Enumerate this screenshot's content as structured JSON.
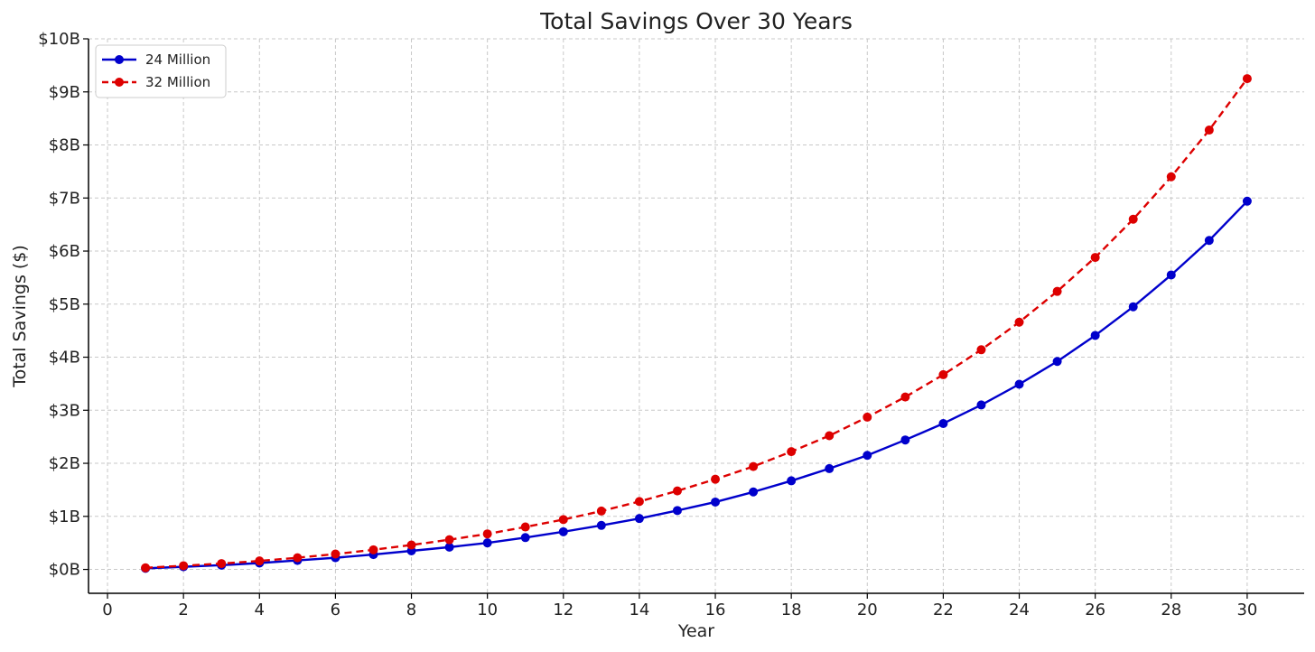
{
  "chart_data": {
    "type": "line",
    "title": "Total Savings Over 30 Years",
    "xlabel": "Year",
    "ylabel": "Total Savings ($)",
    "xlim": [
      -0.5,
      31.5
    ],
    "ylim": [
      -0.45,
      10
    ],
    "x_ticks": [
      0,
      2,
      4,
      6,
      8,
      10,
      12,
      14,
      16,
      18,
      20,
      22,
      24,
      26,
      28,
      30
    ],
    "y_ticks": [
      0,
      1,
      2,
      3,
      4,
      5,
      6,
      7,
      8,
      9,
      10
    ],
    "y_tick_labels": [
      "$0B",
      "$1B",
      "$2B",
      "$3B",
      "$4B",
      "$5B",
      "$6B",
      "$7B",
      "$8B",
      "$9B",
      "$10B"
    ],
    "y_unit": "billions of dollars",
    "grid": true,
    "legend_position": "top-left",
    "x": [
      1,
      2,
      3,
      4,
      5,
      6,
      7,
      8,
      9,
      10,
      11,
      12,
      13,
      14,
      15,
      16,
      17,
      18,
      19,
      20,
      21,
      22,
      23,
      24,
      25,
      26,
      27,
      28,
      29,
      30
    ],
    "series": [
      {
        "name": "24 Million",
        "color": "#0000cc",
        "line_style": "solid",
        "marker": "circle",
        "values": [
          0.02,
          0.05,
          0.08,
          0.12,
          0.17,
          0.22,
          0.28,
          0.35,
          0.42,
          0.5,
          0.6,
          0.71,
          0.83,
          0.96,
          1.11,
          1.27,
          1.46,
          1.67,
          1.9,
          2.15,
          2.44,
          2.75,
          3.1,
          3.49,
          3.92,
          4.41,
          4.95,
          5.55,
          6.2,
          6.94
        ]
      },
      {
        "name": "32 Million",
        "color": "#dd0000",
        "line_style": "dashed",
        "marker": "circle",
        "values": [
          0.03,
          0.07,
          0.11,
          0.16,
          0.22,
          0.29,
          0.37,
          0.46,
          0.56,
          0.67,
          0.8,
          0.94,
          1.1,
          1.28,
          1.48,
          1.7,
          1.94,
          2.22,
          2.52,
          2.87,
          3.25,
          3.67,
          4.14,
          4.66,
          5.24,
          5.88,
          6.6,
          7.4,
          8.28,
          9.25
        ]
      }
    ]
  }
}
